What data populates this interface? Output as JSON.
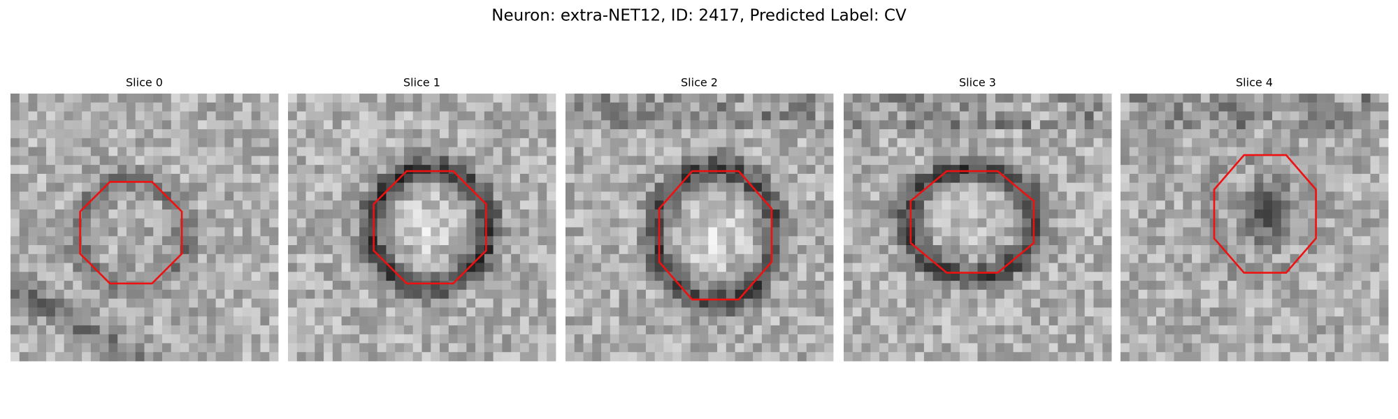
{
  "figure": {
    "title": "Neuron: extra-NET12, ID: 2417, Predicted Label: CV",
    "panels": [
      {
        "title": "Slice 0"
      },
      {
        "title": "Slice 1"
      },
      {
        "title": "Slice 2"
      },
      {
        "title": "Slice 3"
      },
      {
        "title": "Slice 4"
      }
    ]
  }
}
